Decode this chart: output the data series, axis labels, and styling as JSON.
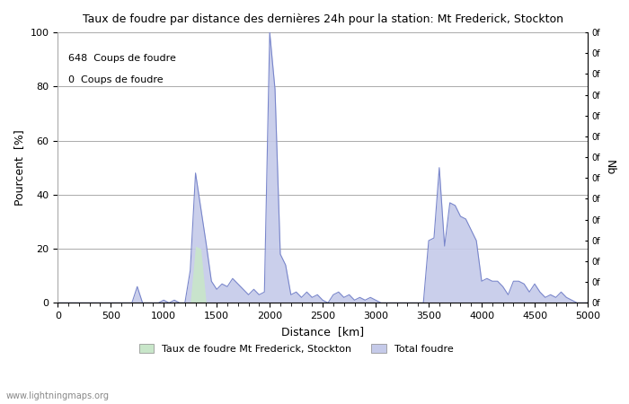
{
  "title": "Taux de foudre par distance des dernières 24h pour la station: Mt Frederick, Stockton",
  "xlabel": "Distance  [km]",
  "ylabel_left": "Pourcent  [%]",
  "ylabel_right": "Nb",
  "legend_label1": "Taux de foudre Mt Frederick, Stockton",
  "legend_label2": "Total foudre",
  "annotation1": "648  Coups de foudre",
  "annotation2": "0  Coups de foudre",
  "watermark": "www.lightningmaps.org",
  "xlim": [
    0,
    5000
  ],
  "ylim": [
    0,
    100
  ],
  "right_ytick_label": "0f",
  "right_yticks_count": 14,
  "fill_color_green": "#c8e6c9",
  "fill_color_blue": "#c5cae9",
  "line_color": "#7986cb",
  "grid_color": "#aaaaaa",
  "bg_color": "#ffffff",
  "x_ticks": [
    0,
    500,
    1000,
    1500,
    2000,
    2500,
    3000,
    3500,
    4000,
    4500,
    5000
  ],
  "y_ticks_left": [
    0,
    20,
    40,
    60,
    80,
    100
  ],
  "distances": [
    0,
    50,
    100,
    150,
    200,
    250,
    300,
    350,
    400,
    450,
    500,
    550,
    600,
    650,
    700,
    750,
    800,
    850,
    900,
    950,
    1000,
    1050,
    1100,
    1150,
    1200,
    1250,
    1300,
    1350,
    1400,
    1450,
    1500,
    1550,
    1600,
    1650,
    1700,
    1750,
    1800,
    1850,
    1900,
    1950,
    2000,
    2050,
    2100,
    2150,
    2200,
    2250,
    2300,
    2350,
    2400,
    2450,
    2500,
    2550,
    2600,
    2650,
    2700,
    2750,
    2800,
    2850,
    2900,
    2950,
    3000,
    3050,
    3100,
    3150,
    3200,
    3250,
    3300,
    3350,
    3400,
    3450,
    3500,
    3550,
    3600,
    3650,
    3700,
    3750,
    3800,
    3850,
    3900,
    3950,
    4000,
    4050,
    4100,
    4150,
    4200,
    4250,
    4300,
    4350,
    4400,
    4450,
    4500,
    4550,
    4600,
    4650,
    4700,
    4750,
    4800,
    4850,
    4900,
    4950,
    5000
  ],
  "total_foudre": [
    0,
    0,
    0,
    0,
    0,
    0,
    0,
    0,
    0,
    0,
    0,
    0,
    0,
    0,
    0,
    6,
    0,
    0,
    0,
    0,
    1,
    0,
    1,
    0,
    0,
    12,
    48,
    35,
    22,
    8,
    5,
    7,
    6,
    9,
    7,
    5,
    3,
    5,
    3,
    4,
    100,
    79,
    18,
    14,
    3,
    4,
    2,
    4,
    2,
    3,
    1,
    0,
    3,
    4,
    2,
    3,
    1,
    2,
    1,
    2,
    1,
    0,
    0,
    0,
    0,
    0,
    0,
    0,
    0,
    0,
    23,
    24,
    50,
    21,
    37,
    36,
    32,
    31,
    27,
    23,
    8,
    9,
    8,
    8,
    6,
    3,
    8,
    8,
    7,
    4,
    7,
    4,
    2,
    3,
    2,
    4,
    2,
    1,
    0,
    0,
    0
  ],
  "taux_foudre": [
    0,
    0,
    0,
    0,
    0,
    0,
    0,
    0,
    0,
    0,
    0,
    0,
    0,
    0,
    0,
    0,
    0,
    0,
    0,
    0,
    0,
    0,
    0,
    0,
    0,
    0,
    21,
    20,
    0,
    0,
    0,
    0,
    0,
    0,
    0,
    0,
    0,
    0,
    0,
    0,
    0,
    0,
    0,
    0,
    0,
    0,
    0,
    0,
    0,
    0,
    0,
    0,
    0,
    0,
    0,
    0,
    0,
    0,
    0,
    0,
    0,
    0,
    0,
    0,
    0,
    0,
    0,
    0,
    0,
    0,
    0,
    0,
    0,
    0,
    0,
    0,
    0,
    0,
    0,
    0,
    0,
    0,
    0,
    0,
    0,
    0,
    0,
    0,
    0,
    0,
    0,
    0,
    0,
    0,
    0,
    0,
    0,
    0,
    0,
    0,
    0
  ]
}
